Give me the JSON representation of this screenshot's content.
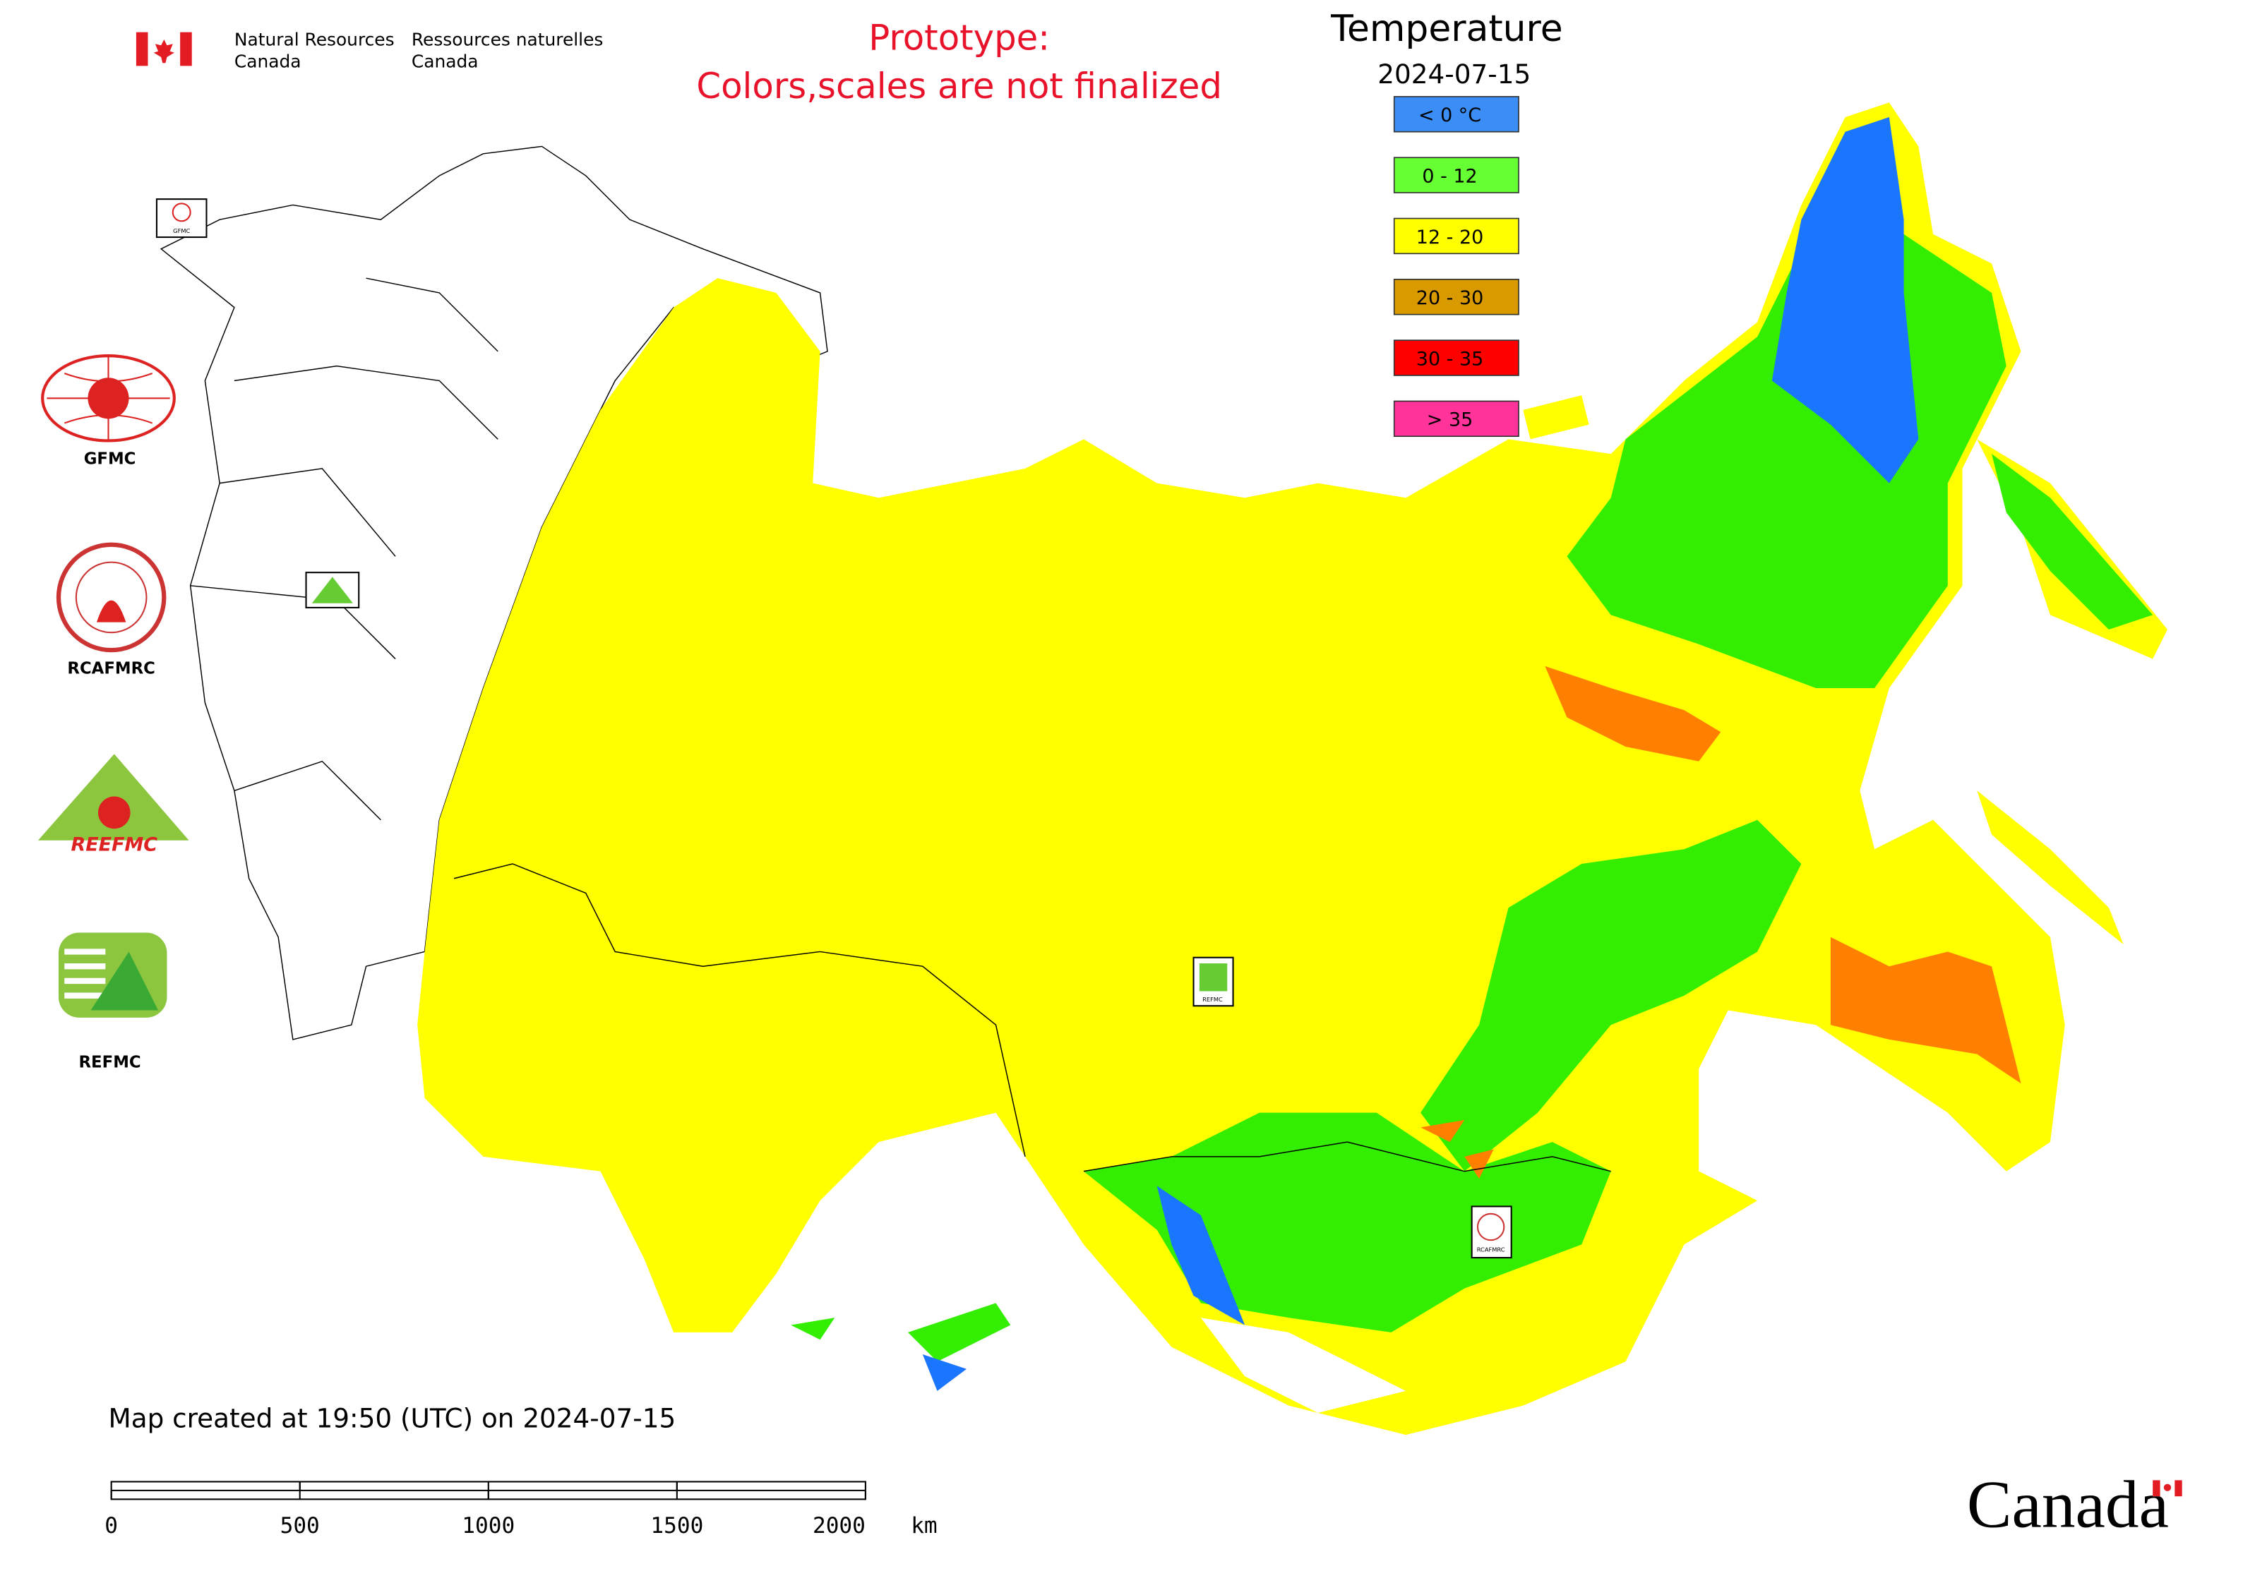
{
  "header": {
    "agency_en": [
      "Natural Resources",
      "Canada"
    ],
    "agency_fr": [
      "Ressources naturelles",
      "Canada"
    ],
    "notice": [
      "Prototype:",
      "Colors,scales are not finalized"
    ]
  },
  "legend": {
    "title": "Temperature",
    "date": "2024-07-15",
    "classes": [
      {
        "label": "< 0 °C",
        "color": "#3a8ef6"
      },
      {
        "label": "0 - 12",
        "color": "#66ff33"
      },
      {
        "label": "12 - 20",
        "color": "#ffff00"
      },
      {
        "label": "20 - 30",
        "color": "#d99a00"
      },
      {
        "label": "30 - 35",
        "color": "#ff0000"
      },
      {
        "label": "> 35",
        "color": "#ff3399"
      }
    ]
  },
  "logos": [
    "GFMC",
    "RCAFMRC",
    "REEFMC",
    "REFMC"
  ],
  "footer": "Map created at 19:50 (UTC) on 2024-07-15",
  "scale_bar": {
    "ticks": [
      0,
      500,
      1000,
      1500,
      2000
    ],
    "unit": "km"
  },
  "wordmark": "Canada"
}
